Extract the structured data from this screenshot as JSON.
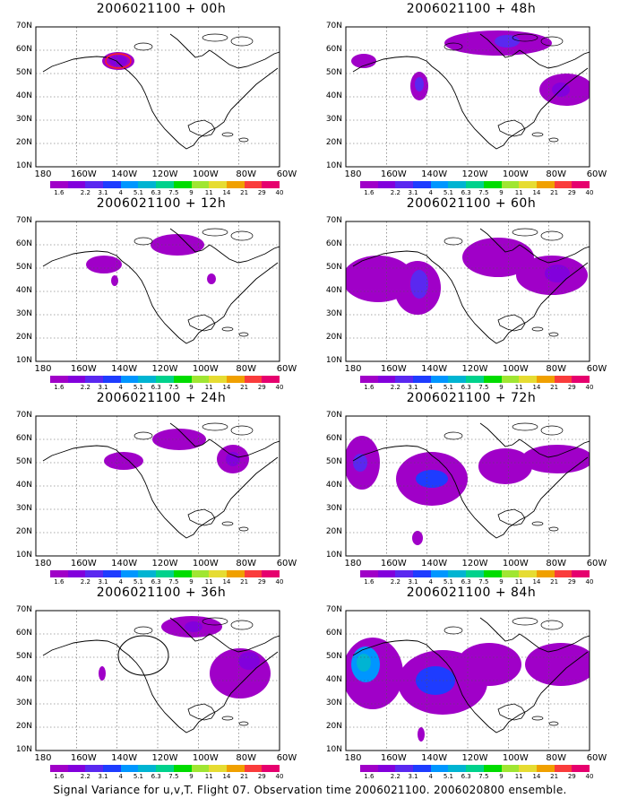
{
  "caption": "Signal Variance for u,v,T. Flight 07. Observation time 2006021100. 2006020800 ensemble.",
  "lat_labels": [
    "70N",
    "60N",
    "50N",
    "40N",
    "30N",
    "20N",
    "10N"
  ],
  "lon_labels": [
    "180",
    "160W",
    "140W",
    "120W",
    "100W",
    "80W",
    "60W"
  ],
  "colorbar": {
    "labels": [
      "1.6",
      "2.2",
      "3.1",
      "4",
      "5.1",
      "6.3",
      "7.5",
      "9",
      "11",
      "14",
      "21",
      "29",
      "40"
    ],
    "colors": [
      "#a000c8",
      "#8200dc",
      "#5a28f0",
      "#1e3cff",
      "#0096ff",
      "#00b4d2",
      "#00d28c",
      "#00dc00",
      "#a0e632",
      "#e6dc32",
      "#f0a000",
      "#fa3c3c",
      "#e6006e"
    ]
  },
  "panels": [
    {
      "title": "2006021100 + 00h"
    },
    {
      "title": "2006021100 + 48h"
    },
    {
      "title": "2006021100 + 12h"
    },
    {
      "title": "2006021100 + 60h"
    },
    {
      "title": "2006021100 + 24h"
    },
    {
      "title": "2006021100 + 72h"
    },
    {
      "title": "2006021100 + 36h"
    },
    {
      "title": "2006021100 + 84h"
    }
  ]
}
